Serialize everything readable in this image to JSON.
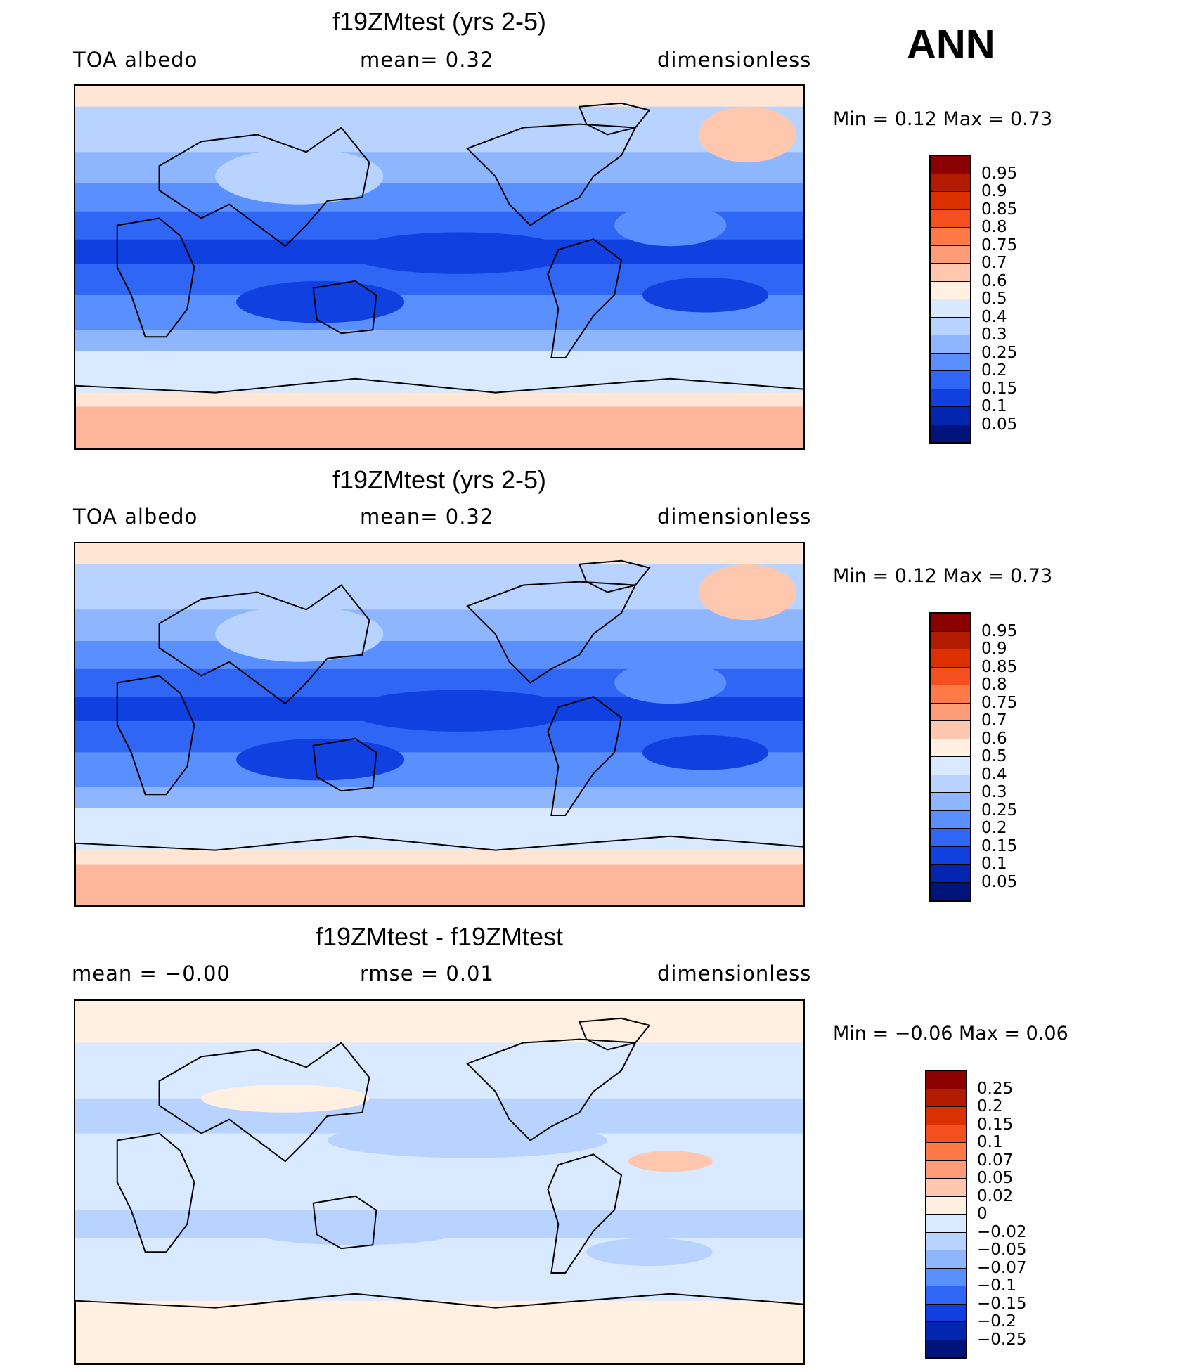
{
  "season": "ANN",
  "panels": [
    {
      "title": "f19ZMtest (yrs 2-5)",
      "left_label": "TOA  albedo",
      "mid_label": "mean=     0.32",
      "right_label": "dimensionless",
      "minmax": "Min  =     0.12  Max  =     0.73",
      "colorbar": {
        "labels": [
          "0.95",
          "0.9",
          "0.85",
          "0.8",
          "0.75",
          "0.7",
          "0.6",
          "0.5",
          "0.4",
          "0.3",
          "0.25",
          "0.2",
          "0.15",
          "0.1",
          "0.05"
        ],
        "colors": [
          "#8b0000",
          "#b31b00",
          "#dc3000",
          "#f4501f",
          "#ff7a47",
          "#ff9c78",
          "#ffc7ad",
          "#fff0e2",
          "#d9e9ff",
          "#b8d3ff",
          "#8eb6ff",
          "#5a8fff",
          "#2f66f5",
          "#1040e0",
          "#0226b0",
          "#00137a"
        ]
      },
      "map_style": "mean"
    },
    {
      "title": "f19ZMtest (yrs 2-5)",
      "left_label": "TOA  albedo",
      "mid_label": "mean=     0.32",
      "right_label": "dimensionless",
      "minmax": "Min  =     0.12  Max  =     0.73",
      "colorbar": {
        "labels": [
          "0.95",
          "0.9",
          "0.85",
          "0.8",
          "0.75",
          "0.7",
          "0.6",
          "0.5",
          "0.4",
          "0.3",
          "0.25",
          "0.2",
          "0.15",
          "0.1",
          "0.05"
        ],
        "colors": [
          "#8b0000",
          "#b31b00",
          "#dc3000",
          "#f4501f",
          "#ff7a47",
          "#ff9c78",
          "#ffc7ad",
          "#fff0e2",
          "#d9e9ff",
          "#b8d3ff",
          "#8eb6ff",
          "#5a8fff",
          "#2f66f5",
          "#1040e0",
          "#0226b0",
          "#00137a"
        ]
      },
      "map_style": "mean"
    },
    {
      "title": "f19ZMtest - f19ZMtest",
      "left_label": "mean  =    −0.00",
      "mid_label": "rmse  =     0.01",
      "right_label": "dimensionless",
      "minmax": "Min  =    −0.06  Max  =     0.06",
      "colorbar": {
        "labels": [
          "0.25",
          "0.2",
          "0.15",
          "0.1",
          "0.07",
          "0.05",
          "0.02",
          "0",
          "−0.02",
          "−0.05",
          "−0.07",
          "−0.1",
          "−0.15",
          "−0.2",
          "−0.25"
        ],
        "colors": [
          "#8b0000",
          "#b31b00",
          "#dc3000",
          "#f4501f",
          "#ff7a47",
          "#ff9c78",
          "#ffc7ad",
          "#fff0e2",
          "#d9e9ff",
          "#b8d3ff",
          "#8eb6ff",
          "#5a8fff",
          "#2f66f5",
          "#1040e0",
          "#0226b0",
          "#00137a"
        ]
      },
      "map_style": "diff"
    }
  ]
}
